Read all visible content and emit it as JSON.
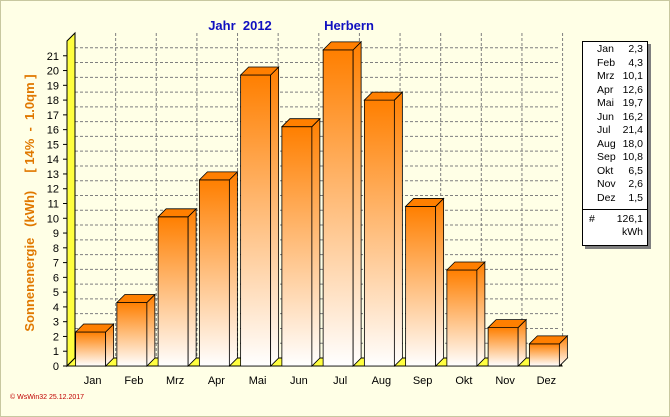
{
  "chart_data": {
    "type": "bar",
    "title_year": "Jahr  2012",
    "title_location": "Herbern",
    "ylabel": "Sonnenenergie   (kWh)     [ 14%  -  1.0qm ]",
    "categories": [
      "Jan",
      "Feb",
      "Mrz",
      "Apr",
      "Mai",
      "Jun",
      "Jul",
      "Aug",
      "Sep",
      "Okt",
      "Nov",
      "Dez"
    ],
    "values": [
      2.3,
      4.3,
      10.1,
      12.6,
      19.7,
      16.2,
      21.4,
      18.0,
      10.8,
      6.5,
      2.6,
      1.5
    ],
    "value_labels": [
      "2,3",
      "4,3",
      "10,1",
      "12,6",
      "19,7",
      "16,2",
      "21,4",
      "18,0",
      "10,8",
      "6,5",
      "2,6",
      "1,5"
    ],
    "ylim": [
      0,
      22
    ],
    "yticks": [
      0,
      1,
      2,
      3,
      4,
      5,
      6,
      7,
      8,
      9,
      10,
      11,
      12,
      13,
      14,
      15,
      16,
      17,
      18,
      19,
      20,
      21
    ],
    "grid": true,
    "bar_color_top": "#ff7f00",
    "bar_color_bottom": "#ffffff",
    "floor_color": "#ffff40",
    "legend_position": "right"
  },
  "legend": {
    "total_symbol": "#",
    "total_value": "126,1",
    "unit": "kWh"
  },
  "footer": "© WsWin32  25.12.2017"
}
